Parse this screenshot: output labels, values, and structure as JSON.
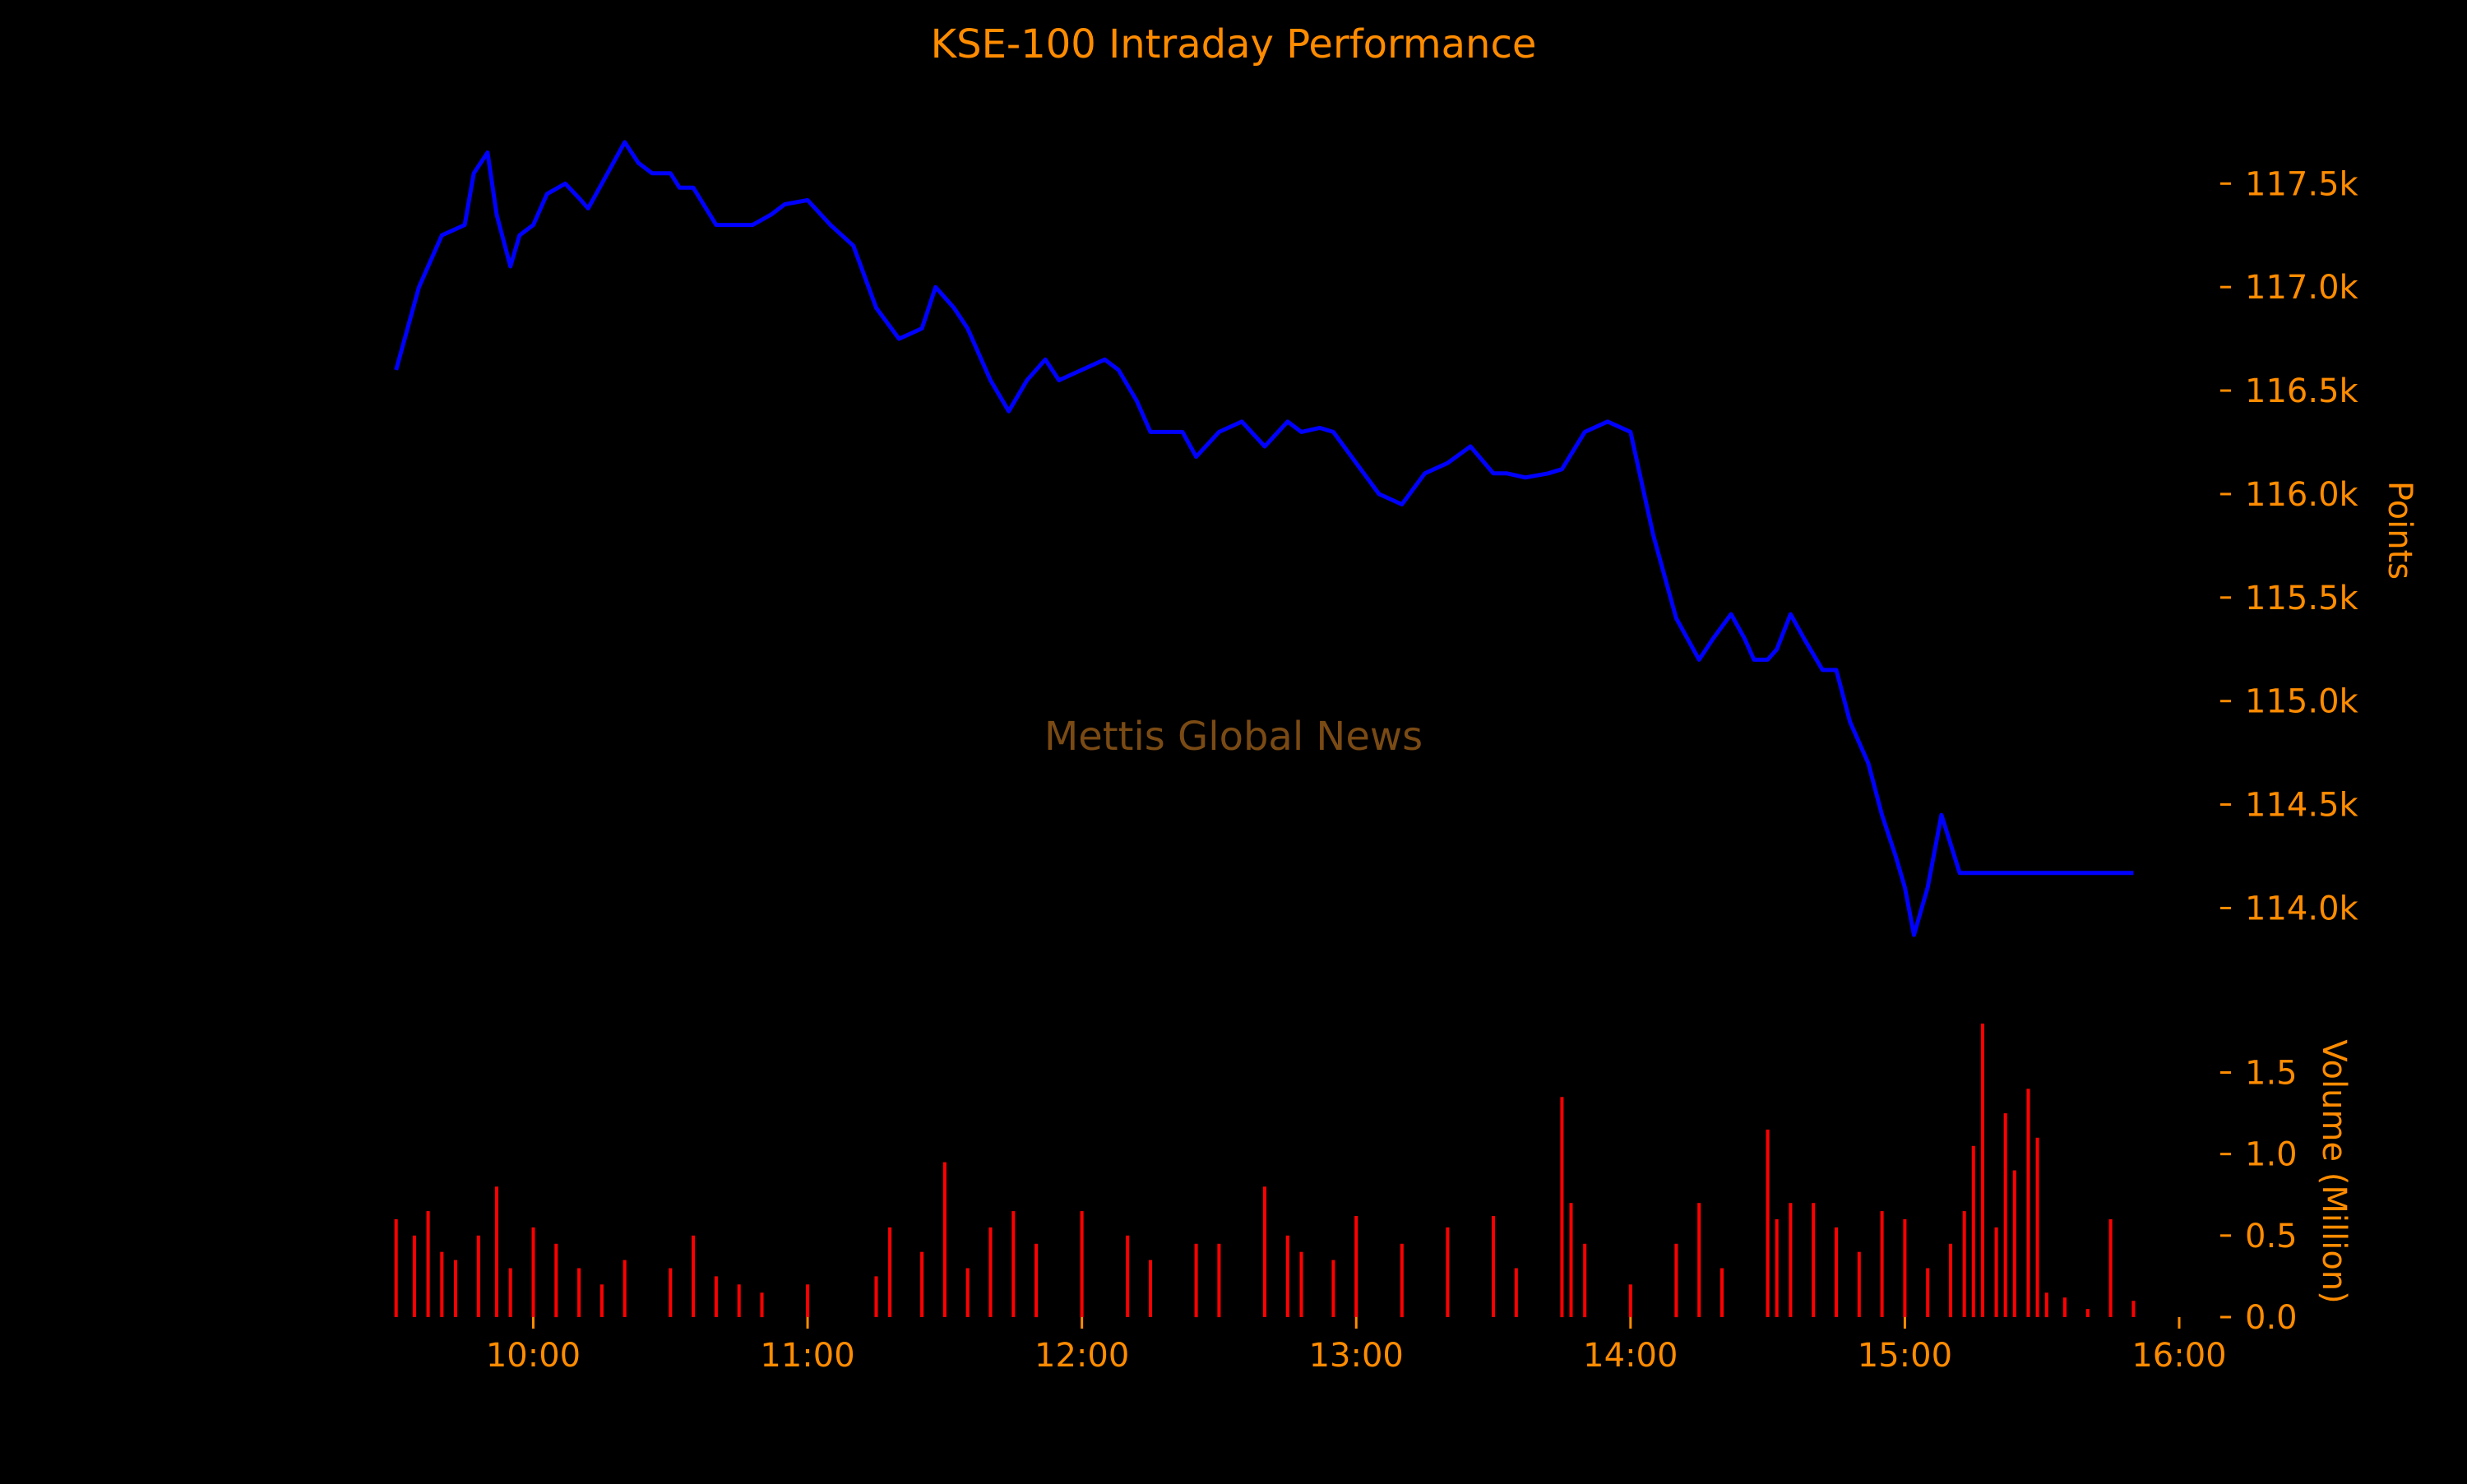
{
  "colors": {
    "background": "#000000",
    "text": "#FF8C00",
    "price_line": "#0000FF",
    "volume_bars": "#FF0000",
    "watermark": "#7A4A14"
  },
  "chart_data": [
    {
      "type": "line",
      "title": "KSE-100 Intraday Performance",
      "watermark": "Mettis Global News",
      "ylabel": "Points",
      "y_axis_side": "right",
      "ylim": [
        113700,
        117950
      ],
      "y_ticks": [
        114000,
        114500,
        115000,
        115500,
        116000,
        116500,
        117000,
        117500
      ],
      "y_tick_labels": [
        "114.0k",
        "114.5k",
        "115.0k",
        "115.5k",
        "116.0k",
        "116.5k",
        "117.0k",
        "117.5k"
      ],
      "grid": false,
      "x_unit": "time of day",
      "series": [
        {
          "x": [
            "09:30",
            "09:35",
            "09:38",
            "09:40",
            "09:45",
            "09:47",
            "09:50",
            "09:52",
            "09:55",
            "09:57",
            "10:00",
            "10:03",
            "10:07",
            "10:10",
            "10:12",
            "10:15",
            "10:20",
            "10:23",
            "10:26",
            "10:30",
            "10:32",
            "10:35",
            "10:40",
            "10:45",
            "10:48",
            "10:52",
            "10:55",
            "11:00",
            "11:05",
            "11:10",
            "11:15",
            "11:20",
            "11:25",
            "11:28",
            "11:32",
            "11:35",
            "11:40",
            "11:44",
            "11:48",
            "11:52",
            "11:55",
            "12:00",
            "12:05",
            "12:08",
            "12:12",
            "12:15",
            "12:20",
            "12:22",
            "12:25",
            "12:30",
            "12:35",
            "12:40",
            "12:45",
            "12:48",
            "12:52",
            "12:55",
            "13:00",
            "13:05",
            "13:10",
            "13:15",
            "13:20",
            "13:25",
            "13:30",
            "13:33",
            "13:37",
            "13:42",
            "13:45",
            "13:50",
            "13:55",
            "14:00",
            "14:05",
            "14:10",
            "14:15",
            "14:18",
            "14:22",
            "14:25",
            "14:27",
            "14:30",
            "14:32",
            "14:35",
            "14:38",
            "14:42",
            "14:45",
            "14:48",
            "14:52",
            "14:55",
            "14:58",
            "15:00",
            "15:02",
            "15:05",
            "15:08",
            "15:12",
            "15:15",
            "15:18",
            "15:20",
            "15:23",
            "15:26",
            "15:28",
            "15:30",
            "15:35",
            "15:40",
            "15:45",
            "15:50"
          ],
          "y": [
            116600,
            117000,
            117150,
            117250,
            117300,
            117550,
            117650,
            117350,
            117100,
            117250,
            117300,
            117450,
            117500,
            117430,
            117380,
            117500,
            117700,
            117600,
            117550,
            117550,
            117480,
            117480,
            117300,
            117300,
            117300,
            117350,
            117400,
            117420,
            117300,
            117200,
            116900,
            116750,
            116800,
            117000,
            116900,
            116800,
            116550,
            116400,
            116550,
            116650,
            116550,
            116600,
            116650,
            116600,
            116450,
            116300,
            116300,
            116300,
            116180,
            116300,
            116350,
            116230,
            116350,
            116300,
            116320,
            116300,
            116150,
            116000,
            115950,
            116100,
            116150,
            116230,
            116100,
            116100,
            116080,
            116100,
            116120,
            116300,
            116350,
            116300,
            115800,
            115400,
            115200,
            115300,
            115420,
            115300,
            115200,
            115200,
            115250,
            115420,
            115300,
            115150,
            115150,
            114900,
            114700,
            114450,
            114250,
            114100,
            113870,
            114100,
            114450,
            114170,
            114170,
            114170,
            114170,
            114170,
            114170,
            114170,
            114170,
            114170,
            114170,
            114170,
            114170
          ]
        }
      ]
    },
    {
      "type": "bar",
      "ylabel": "Volume (Million)",
      "y_axis_side": "right",
      "ylim": [
        0,
        1.8
      ],
      "y_ticks": [
        0,
        0.5,
        1.0,
        1.5
      ],
      "y_tick_labels": [
        "0.0",
        "0.5",
        "1.0",
        "1.5"
      ],
      "x_ticks": [
        "10:00",
        "11:00",
        "12:00",
        "13:00",
        "14:00",
        "15:00",
        "16:00"
      ],
      "x_range": [
        "09:27",
        "16:00"
      ],
      "grid": false,
      "series": [
        {
          "x": [
            "09:30",
            "09:34",
            "09:37",
            "09:40",
            "09:43",
            "09:48",
            "09:52",
            "09:55",
            "10:00",
            "10:05",
            "10:10",
            "10:15",
            "10:20",
            "10:30",
            "10:35",
            "10:40",
            "10:45",
            "10:50",
            "11:00",
            "11:15",
            "11:18",
            "11:25",
            "11:30",
            "11:35",
            "11:40",
            "11:45",
            "11:50",
            "12:00",
            "12:10",
            "12:15",
            "12:25",
            "12:30",
            "12:40",
            "12:45",
            "12:48",
            "12:55",
            "13:00",
            "13:10",
            "13:20",
            "13:30",
            "13:35",
            "13:45",
            "13:47",
            "13:50",
            "14:00",
            "14:10",
            "14:15",
            "14:20",
            "14:30",
            "14:32",
            "14:35",
            "14:40",
            "14:45",
            "14:50",
            "14:55",
            "15:00",
            "15:05",
            "15:10",
            "15:13",
            "15:15",
            "15:17",
            "15:20",
            "15:22",
            "15:24",
            "15:27",
            "15:29",
            "15:31",
            "15:35",
            "15:40",
            "15:45",
            "15:50"
          ],
          "values": [
            0.6,
            0.5,
            0.65,
            0.4,
            0.35,
            0.5,
            0.8,
            0.3,
            0.55,
            0.45,
            0.3,
            0.2,
            0.35,
            0.3,
            0.5,
            0.25,
            0.2,
            0.15,
            0.2,
            0.25,
            0.55,
            0.4,
            0.95,
            0.3,
            0.55,
            0.65,
            0.45,
            0.65,
            0.5,
            0.35,
            0.45,
            0.45,
            0.8,
            0.5,
            0.4,
            0.35,
            0.62,
            0.45,
            0.55,
            0.62,
            0.3,
            1.35,
            0.7,
            0.45,
            0.2,
            0.45,
            0.7,
            0.3,
            1.15,
            0.6,
            0.7,
            0.7,
            0.55,
            0.4,
            0.65,
            0.6,
            0.3,
            0.45,
            0.65,
            1.05,
            1.8,
            0.55,
            1.25,
            0.9,
            1.4,
            1.1,
            0.15,
            0.12,
            0.05,
            0.6,
            0.1
          ]
        }
      ]
    }
  ]
}
